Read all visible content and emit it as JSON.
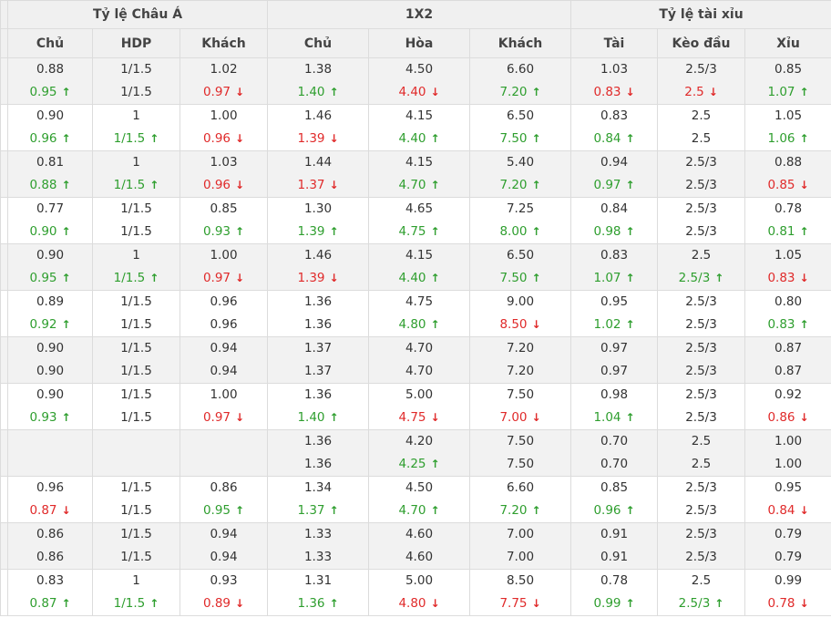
{
  "header": {
    "groups": [
      "Tỷ lệ Châu Á",
      "1X2",
      "Tỷ lệ tài xỉu"
    ],
    "columns": [
      "Chủ",
      "HDP",
      "Khách",
      "Chủ",
      "Hòa",
      "Khách",
      "Tài",
      "Kèo đầu",
      "Xỉu"
    ]
  },
  "arrows": {
    "up": "↑",
    "down": "↓"
  },
  "rows": [
    [
      [
        "0.88",
        "0.95",
        "u"
      ],
      [
        "1/1.5",
        "1/1.5",
        ""
      ],
      [
        "1.02",
        "0.97",
        "d"
      ],
      [
        "1.38",
        "1.40",
        "u"
      ],
      [
        "4.50",
        "4.40",
        "d"
      ],
      [
        "6.60",
        "7.20",
        "u"
      ],
      [
        "1.03",
        "0.83",
        "d"
      ],
      [
        "2.5/3",
        "2.5",
        "d"
      ],
      [
        "0.85",
        "1.07",
        "u"
      ]
    ],
    [
      [
        "0.90",
        "0.96",
        "u"
      ],
      [
        "1",
        "1/1.5",
        "u"
      ],
      [
        "1.00",
        "0.96",
        "d"
      ],
      [
        "1.46",
        "1.39",
        "d"
      ],
      [
        "4.15",
        "4.40",
        "u"
      ],
      [
        "6.50",
        "7.50",
        "u"
      ],
      [
        "0.83",
        "0.84",
        "u"
      ],
      [
        "2.5",
        "2.5",
        ""
      ],
      [
        "1.05",
        "1.06",
        "u"
      ]
    ],
    [
      [
        "0.81",
        "0.88",
        "u"
      ],
      [
        "1",
        "1/1.5",
        "u"
      ],
      [
        "1.03",
        "0.96",
        "d"
      ],
      [
        "1.44",
        "1.37",
        "d"
      ],
      [
        "4.15",
        "4.70",
        "u"
      ],
      [
        "5.40",
        "7.20",
        "u"
      ],
      [
        "0.94",
        "0.97",
        "u"
      ],
      [
        "2.5/3",
        "2.5/3",
        ""
      ],
      [
        "0.88",
        "0.85",
        "d"
      ]
    ],
    [
      [
        "0.77",
        "0.90",
        "u"
      ],
      [
        "1/1.5",
        "1/1.5",
        ""
      ],
      [
        "0.85",
        "0.93",
        "u"
      ],
      [
        "1.30",
        "1.39",
        "u"
      ],
      [
        "4.65",
        "4.75",
        "u"
      ],
      [
        "7.25",
        "8.00",
        "u"
      ],
      [
        "0.84",
        "0.98",
        "u"
      ],
      [
        "2.5/3",
        "2.5/3",
        ""
      ],
      [
        "0.78",
        "0.81",
        "u"
      ]
    ],
    [
      [
        "0.90",
        "0.95",
        "u"
      ],
      [
        "1",
        "1/1.5",
        "u"
      ],
      [
        "1.00",
        "0.97",
        "d"
      ],
      [
        "1.46",
        "1.39",
        "d"
      ],
      [
        "4.15",
        "4.40",
        "u"
      ],
      [
        "6.50",
        "7.50",
        "u"
      ],
      [
        "0.83",
        "1.07",
        "u"
      ],
      [
        "2.5",
        "2.5/3",
        "u"
      ],
      [
        "1.05",
        "0.83",
        "d"
      ]
    ],
    [
      [
        "0.89",
        "0.92",
        "u"
      ],
      [
        "1/1.5",
        "1/1.5",
        ""
      ],
      [
        "0.96",
        "0.96",
        ""
      ],
      [
        "1.36",
        "1.36",
        ""
      ],
      [
        "4.75",
        "4.80",
        "u"
      ],
      [
        "9.00",
        "8.50",
        "d"
      ],
      [
        "0.95",
        "1.02",
        "u"
      ],
      [
        "2.5/3",
        "2.5/3",
        ""
      ],
      [
        "0.80",
        "0.83",
        "u"
      ]
    ],
    [
      [
        "0.90",
        "0.90",
        ""
      ],
      [
        "1/1.5",
        "1/1.5",
        ""
      ],
      [
        "0.94",
        "0.94",
        ""
      ],
      [
        "1.37",
        "1.37",
        ""
      ],
      [
        "4.70",
        "4.70",
        ""
      ],
      [
        "7.20",
        "7.20",
        ""
      ],
      [
        "0.97",
        "0.97",
        ""
      ],
      [
        "2.5/3",
        "2.5/3",
        ""
      ],
      [
        "0.87",
        "0.87",
        ""
      ]
    ],
    [
      [
        "0.90",
        "0.93",
        "u"
      ],
      [
        "1/1.5",
        "1/1.5",
        ""
      ],
      [
        "1.00",
        "0.97",
        "d"
      ],
      [
        "1.36",
        "1.40",
        "u"
      ],
      [
        "5.00",
        "4.75",
        "d"
      ],
      [
        "7.50",
        "7.00",
        "d"
      ],
      [
        "0.98",
        "1.04",
        "u"
      ],
      [
        "2.5/3",
        "2.5/3",
        ""
      ],
      [
        "0.92",
        "0.86",
        "d"
      ]
    ],
    [
      [
        "",
        "",
        ""
      ],
      [
        "",
        "",
        ""
      ],
      [
        "",
        "",
        ""
      ],
      [
        "1.36",
        "1.36",
        ""
      ],
      [
        "4.20",
        "4.25",
        "u"
      ],
      [
        "7.50",
        "7.50",
        ""
      ],
      [
        "0.70",
        "0.70",
        ""
      ],
      [
        "2.5",
        "2.5",
        ""
      ],
      [
        "1.00",
        "1.00",
        ""
      ]
    ],
    [
      [
        "0.96",
        "0.87",
        "d"
      ],
      [
        "1/1.5",
        "1/1.5",
        ""
      ],
      [
        "0.86",
        "0.95",
        "u"
      ],
      [
        "1.34",
        "1.37",
        "u"
      ],
      [
        "4.50",
        "4.70",
        "u"
      ],
      [
        "6.60",
        "7.20",
        "u"
      ],
      [
        "0.85",
        "0.96",
        "u"
      ],
      [
        "2.5/3",
        "2.5/3",
        ""
      ],
      [
        "0.95",
        "0.84",
        "d"
      ]
    ],
    [
      [
        "0.86",
        "0.86",
        ""
      ],
      [
        "1/1.5",
        "1/1.5",
        ""
      ],
      [
        "0.94",
        "0.94",
        ""
      ],
      [
        "1.33",
        "1.33",
        ""
      ],
      [
        "4.60",
        "4.60",
        ""
      ],
      [
        "7.00",
        "7.00",
        ""
      ],
      [
        "0.91",
        "0.91",
        ""
      ],
      [
        "2.5/3",
        "2.5/3",
        ""
      ],
      [
        "0.79",
        "0.79",
        ""
      ]
    ],
    [
      [
        "0.83",
        "0.87",
        "u"
      ],
      [
        "1",
        "1/1.5",
        "u"
      ],
      [
        "0.93",
        "0.89",
        "d"
      ],
      [
        "1.31",
        "1.36",
        "u"
      ],
      [
        "5.00",
        "4.80",
        "d"
      ],
      [
        "8.50",
        "7.75",
        "d"
      ],
      [
        "0.78",
        "0.99",
        "u"
      ],
      [
        "2.5",
        "2.5/3",
        "u"
      ],
      [
        "0.99",
        "0.78",
        "d"
      ]
    ]
  ]
}
